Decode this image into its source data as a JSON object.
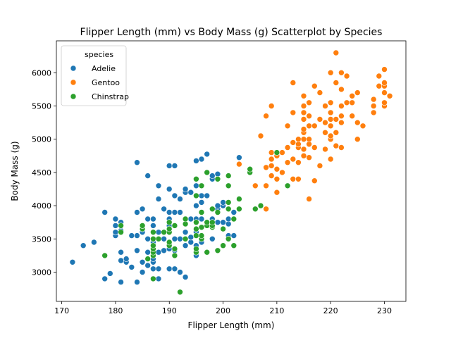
{
  "chart_data": {
    "type": "scatter",
    "title": "Flipper Length (mm) vs Body Mass (g) Scatterplot by Species",
    "xlabel": "Flipper Length (mm)",
    "ylabel": "Body Mass (g)",
    "xlim": [
      169,
      234
    ],
    "ylim": [
      2560,
      6480
    ],
    "xticks": [
      170,
      180,
      190,
      200,
      210,
      220,
      230
    ],
    "yticks": [
      3000,
      3500,
      4000,
      4500,
      5000,
      5500,
      6000
    ],
    "grid": false,
    "legend": {
      "title": "species",
      "placement": "top-left"
    },
    "series": [
      {
        "name": "Adelie",
        "color": "#1f77b4",
        "points": [
          [
            172,
            3150
          ],
          [
            174,
            3400
          ],
          [
            176,
            3450
          ],
          [
            178,
            2900
          ],
          [
            178,
            3900
          ],
          [
            179,
            2980
          ],
          [
            180,
            3550
          ],
          [
            180,
            3600
          ],
          [
            180,
            3700
          ],
          [
            180,
            3800
          ],
          [
            181,
            2850
          ],
          [
            181,
            3175
          ],
          [
            181,
            3300
          ],
          [
            181,
            3625
          ],
          [
            181,
            3750
          ],
          [
            182,
            3150
          ],
          [
            182,
            3200
          ],
          [
            183,
            3075
          ],
          [
            183,
            3550
          ],
          [
            184,
            2850
          ],
          [
            184,
            3325
          ],
          [
            184,
            3550
          ],
          [
            184,
            3900
          ],
          [
            184,
            4650
          ],
          [
            185,
            3000
          ],
          [
            185,
            3150
          ],
          [
            185,
            3600
          ],
          [
            185,
            3650
          ],
          [
            185,
            3950
          ],
          [
            186,
            3100
          ],
          [
            186,
            3300
          ],
          [
            186,
            3500
          ],
          [
            186,
            3800
          ],
          [
            186,
            4450
          ],
          [
            187,
            3050
          ],
          [
            187,
            3150
          ],
          [
            187,
            3200
          ],
          [
            187,
            3300
          ],
          [
            187,
            3450
          ],
          [
            187,
            3500
          ],
          [
            187,
            3600
          ],
          [
            187,
            3700
          ],
          [
            187,
            3800
          ],
          [
            188,
            2900
          ],
          [
            188,
            3050
          ],
          [
            188,
            3300
          ],
          [
            188,
            3600
          ],
          [
            188,
            4100
          ],
          [
            188,
            4300
          ],
          [
            189,
            3325
          ],
          [
            189,
            3500
          ],
          [
            189,
            3950
          ],
          [
            190,
            3050
          ],
          [
            190,
            3350
          ],
          [
            190,
            3450
          ],
          [
            190,
            3600
          ],
          [
            190,
            3700
          ],
          [
            190,
            3800
          ],
          [
            190,
            3900
          ],
          [
            190,
            4250
          ],
          [
            190,
            4600
          ],
          [
            191,
            3050
          ],
          [
            191,
            3325
          ],
          [
            191,
            3500
          ],
          [
            191,
            3700
          ],
          [
            191,
            3900
          ],
          [
            191,
            4150
          ],
          [
            191,
            4600
          ],
          [
            192,
            3000
          ],
          [
            192,
            3500
          ],
          [
            192,
            3900
          ],
          [
            192,
            4100
          ],
          [
            193,
            2925
          ],
          [
            193,
            3400
          ],
          [
            193,
            3600
          ],
          [
            193,
            3800
          ],
          [
            193,
            4200
          ],
          [
            193,
            4250
          ],
          [
            194,
            3450
          ],
          [
            194,
            3525
          ],
          [
            194,
            3800
          ],
          [
            194,
            4200
          ],
          [
            195,
            3250
          ],
          [
            195,
            3300
          ],
          [
            195,
            3400
          ],
          [
            195,
            3600
          ],
          [
            195,
            3800
          ],
          [
            195,
            4000
          ],
          [
            195,
            4300
          ],
          [
            195,
            4675
          ],
          [
            196,
            3450
          ],
          [
            196,
            3675
          ],
          [
            196,
            3800
          ],
          [
            196,
            4050
          ],
          [
            196,
            4150
          ],
          [
            196,
            4700
          ],
          [
            197,
            3700
          ],
          [
            197,
            4150
          ],
          [
            197,
            4500
          ],
          [
            197,
            4775
          ],
          [
            198,
            3500
          ],
          [
            198,
            3800
          ],
          [
            198,
            4400
          ],
          [
            198,
            4450
          ],
          [
            199,
            3750
          ],
          [
            199,
            3950
          ],
          [
            199,
            4000
          ],
          [
            199,
            4475
          ],
          [
            200,
            3400
          ],
          [
            200,
            3750
          ],
          [
            200,
            4000
          ],
          [
            200,
            4050
          ],
          [
            201,
            3550
          ],
          [
            201,
            3725
          ],
          [
            201,
            3800
          ],
          [
            201,
            3950
          ],
          [
            201,
            4050
          ],
          [
            202,
            3550
          ],
          [
            202,
            3900
          ],
          [
            203,
            4725
          ]
        ]
      },
      {
        "name": "Gentoo",
        "color": "#ff7f0e",
        "points": [
          [
            203,
            4625
          ],
          [
            206,
            4300
          ],
          [
            207,
            5050
          ],
          [
            208,
            3950
          ],
          [
            208,
            4300
          ],
          [
            208,
            4575
          ],
          [
            208,
            5350
          ],
          [
            209,
            4450
          ],
          [
            209,
            4600
          ],
          [
            209,
            4700
          ],
          [
            209,
            4800
          ],
          [
            209,
            5500
          ],
          [
            210,
            4200
          ],
          [
            210,
            4400
          ],
          [
            210,
            4550
          ],
          [
            210,
            4750
          ],
          [
            210,
            4800
          ],
          [
            211,
            4500
          ],
          [
            211,
            4800
          ],
          [
            212,
            4650
          ],
          [
            212,
            4875
          ],
          [
            212,
            5200
          ],
          [
            213,
            4400
          ],
          [
            213,
            4700
          ],
          [
            213,
            4950
          ],
          [
            213,
            5400
          ],
          [
            213,
            5850
          ],
          [
            214,
            4400
          ],
          [
            214,
            4650
          ],
          [
            214,
            4875
          ],
          [
            214,
            4925
          ],
          [
            214,
            5000
          ],
          [
            215,
            4750
          ],
          [
            215,
            4850
          ],
          [
            215,
            5000
          ],
          [
            215,
            5100
          ],
          [
            215,
            5150
          ],
          [
            215,
            5300
          ],
          [
            215,
            5400
          ],
          [
            215,
            5500
          ],
          [
            215,
            5650
          ],
          [
            216,
            4100
          ],
          [
            216,
            4725
          ],
          [
            216,
            4925
          ],
          [
            216,
            5000
          ],
          [
            216,
            5200
          ],
          [
            216,
            5350
          ],
          [
            216,
            5550
          ],
          [
            217,
            4375
          ],
          [
            217,
            4875
          ],
          [
            217,
            5200
          ],
          [
            217,
            5800
          ],
          [
            218,
            4600
          ],
          [
            218,
            5300
          ],
          [
            218,
            5700
          ],
          [
            219,
            4850
          ],
          [
            219,
            5100
          ],
          [
            219,
            5250
          ],
          [
            219,
            5500
          ],
          [
            220,
            4700
          ],
          [
            220,
            5000
          ],
          [
            220,
            5050
          ],
          [
            220,
            5200
          ],
          [
            220,
            5300
          ],
          [
            220,
            5400
          ],
          [
            220,
            5550
          ],
          [
            220,
            6000
          ],
          [
            221,
            4900
          ],
          [
            221,
            5100
          ],
          [
            221,
            5300
          ],
          [
            221,
            5850
          ],
          [
            221,
            6300
          ],
          [
            222,
            4875
          ],
          [
            222,
            5250
          ],
          [
            222,
            5350
          ],
          [
            222,
            5500
          ],
          [
            222,
            5750
          ],
          [
            222,
            6000
          ],
          [
            223,
            5550
          ],
          [
            223,
            5950
          ],
          [
            224,
            5350
          ],
          [
            224,
            5550
          ],
          [
            224,
            5650
          ],
          [
            225,
            5000
          ],
          [
            225,
            5250
          ],
          [
            225,
            5700
          ],
          [
            226,
            5200
          ],
          [
            228,
            5400
          ],
          [
            228,
            5500
          ],
          [
            228,
            5600
          ],
          [
            229,
            5800
          ],
          [
            229,
            5950
          ],
          [
            230,
            5500
          ],
          [
            230,
            5550
          ],
          [
            230,
            5700
          ],
          [
            230,
            5800
          ],
          [
            230,
            5850
          ],
          [
            230,
            6050
          ],
          [
            231,
            5650
          ]
        ]
      },
      {
        "name": "Chinstrap",
        "color": "#2ca02c",
        "points": [
          [
            178,
            3250
          ],
          [
            181,
            3600
          ],
          [
            181,
            3700
          ],
          [
            185,
            3650
          ],
          [
            185,
            3700
          ],
          [
            186,
            3200
          ],
          [
            187,
            2900
          ],
          [
            187,
            3250
          ],
          [
            187,
            3300
          ],
          [
            187,
            3350
          ],
          [
            187,
            3400
          ],
          [
            187,
            3500
          ],
          [
            187,
            3600
          ],
          [
            188,
            3500
          ],
          [
            189,
            3600
          ],
          [
            190,
            3400
          ],
          [
            190,
            3450
          ],
          [
            190,
            3600
          ],
          [
            190,
            3650
          ],
          [
            190,
            3750
          ],
          [
            191,
            3250
          ],
          [
            191,
            3350
          ],
          [
            191,
            3700
          ],
          [
            192,
            2700
          ],
          [
            193,
            3500
          ],
          [
            193,
            3725
          ],
          [
            193,
            3800
          ],
          [
            195,
            3300
          ],
          [
            195,
            3350
          ],
          [
            195,
            3550
          ],
          [
            195,
            3650
          ],
          [
            195,
            3750
          ],
          [
            195,
            4150
          ],
          [
            195,
            4400
          ],
          [
            196,
            3500
          ],
          [
            196,
            3550
          ],
          [
            196,
            3675
          ],
          [
            196,
            3900
          ],
          [
            196,
            4300
          ],
          [
            197,
            3300
          ],
          [
            197,
            3700
          ],
          [
            197,
            3750
          ],
          [
            197,
            4500
          ],
          [
            198,
            3675
          ],
          [
            198,
            3700
          ],
          [
            198,
            3750
          ],
          [
            198,
            3950
          ],
          [
            199,
            3325
          ],
          [
            199,
            3900
          ],
          [
            199,
            4400
          ],
          [
            200,
            3400
          ],
          [
            200,
            3650
          ],
          [
            201,
            3500
          ],
          [
            201,
            3950
          ],
          [
            201,
            4050
          ],
          [
            201,
            4300
          ],
          [
            201,
            4450
          ],
          [
            202,
            3400
          ],
          [
            202,
            3800
          ],
          [
            203,
            3950
          ],
          [
            203,
            4100
          ],
          [
            205,
            4500
          ],
          [
            205,
            4550
          ],
          [
            206,
            3950
          ],
          [
            207,
            4000
          ],
          [
            210,
            4800
          ],
          [
            212,
            4300
          ]
        ]
      }
    ]
  }
}
